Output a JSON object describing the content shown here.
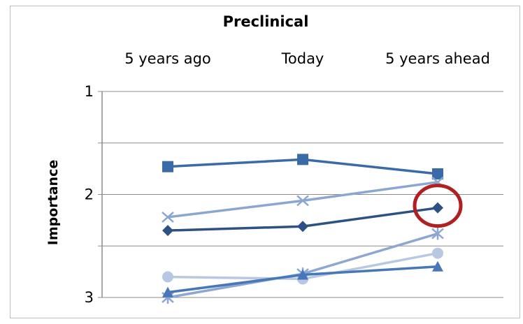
{
  "chart_data": {
    "type": "line",
    "title": "Preclinical",
    "ylabel": "Importance",
    "xlabel": "",
    "categories": [
      "5 years ago",
      "Today",
      "5 years ahead"
    ],
    "y_ticks": [
      "1",
      "2",
      "3"
    ],
    "ylim": [
      1,
      3
    ],
    "y_inverted": true,
    "grid": true,
    "series": [
      {
        "marker": "square",
        "color": "#3b6aa8",
        "values": [
          1.73,
          1.66,
          1.8
        ]
      },
      {
        "marker": "x",
        "color": "#8aa6d1",
        "values": [
          2.22,
          2.06,
          1.88
        ]
      },
      {
        "marker": "diamond",
        "color": "#2c5284",
        "values": [
          2.35,
          2.31,
          2.13
        ]
      },
      {
        "marker": "star",
        "color": "#8ea7d2",
        "values": [
          3.0,
          2.77,
          2.38
        ]
      },
      {
        "marker": "circle",
        "color": "#b9c8e2",
        "values": [
          2.8,
          2.82,
          2.57
        ]
      },
      {
        "marker": "triangle",
        "color": "#4677b8",
        "values": [
          2.95,
          2.78,
          2.7
        ]
      }
    ],
    "annotation": {
      "type": "circle-highlight",
      "color": "#b02020",
      "series_index": 2,
      "category_index": 2
    }
  }
}
